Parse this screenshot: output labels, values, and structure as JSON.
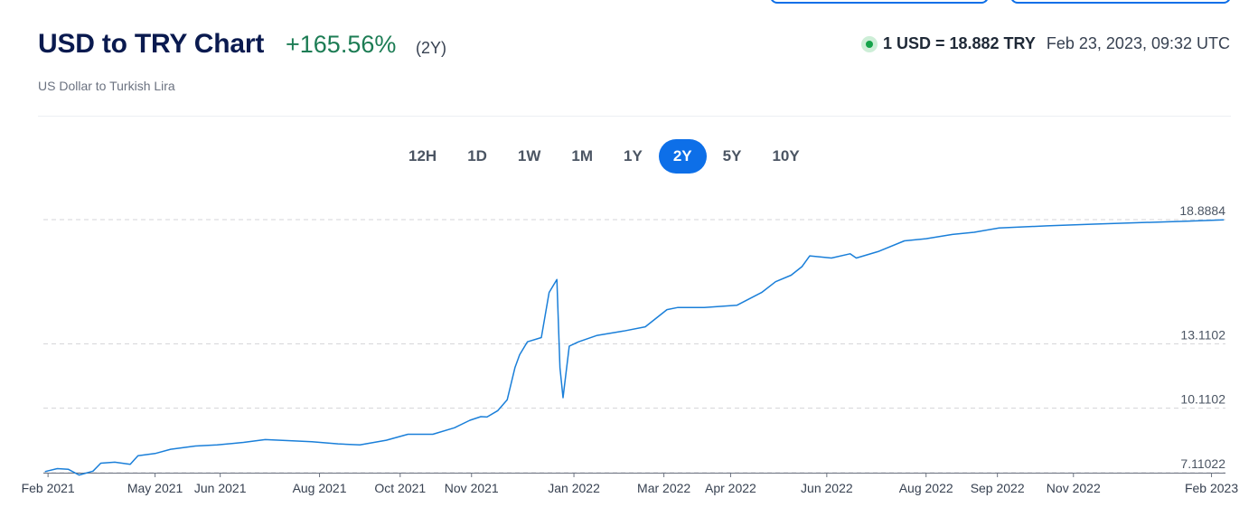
{
  "header": {
    "title": "USD to TRY Chart",
    "change": "+165.56%",
    "period": "(2Y)",
    "subtitle": "US Dollar to Turkish Lira",
    "rate": "1 USD = 18.882 TRY",
    "timestamp": "Feb 23, 2023, 09:32 UTC"
  },
  "periods": [
    {
      "label": "12H",
      "active": false
    },
    {
      "label": "1D",
      "active": false
    },
    {
      "label": "1W",
      "active": false
    },
    {
      "label": "1M",
      "active": false
    },
    {
      "label": "1Y",
      "active": false
    },
    {
      "label": "2Y",
      "active": true
    },
    {
      "label": "5Y",
      "active": false
    },
    {
      "label": "10Y",
      "active": false
    }
  ],
  "colors": {
    "line": "#1a7fd9",
    "accent": "#0d6fe8",
    "positive": "#1c7c54"
  },
  "chart_data": {
    "type": "line",
    "title": "USD to TRY Chart",
    "series": [
      {
        "x": [
          "2021-01-24",
          "2021-02-01",
          "2021-02-08",
          "2021-02-15",
          "2021-02-24",
          "2021-03-01",
          "2021-03-10",
          "2021-03-20",
          "2021-03-25",
          "2021-04-05",
          "2021-04-15",
          "2021-05-01",
          "2021-05-15",
          "2021-06-01",
          "2021-06-15",
          "2021-07-01",
          "2021-07-15",
          "2021-08-01",
          "2021-08-15",
          "2021-09-01",
          "2021-09-15",
          "2021-10-01",
          "2021-10-15",
          "2021-10-25",
          "2021-11-01",
          "2021-11-05",
          "2021-11-12",
          "2021-11-18",
          "2021-11-23",
          "2021-11-26",
          "2021-12-01",
          "2021-12-10",
          "2021-12-15",
          "2021-12-20",
          "2021-12-22",
          "2021-12-24",
          "2021-12-28",
          "2022-01-03",
          "2022-01-15",
          "2022-02-01",
          "2022-02-15",
          "2022-03-01",
          "2022-03-08",
          "2022-03-25",
          "2022-04-15",
          "2022-05-01",
          "2022-05-10",
          "2022-05-20",
          "2022-05-27",
          "2022-06-01",
          "2022-06-15",
          "2022-06-27",
          "2022-07-01",
          "2022-07-15",
          "2022-08-01",
          "2022-08-15",
          "2022-09-01",
          "2022-09-15",
          "2022-10-01",
          "2022-11-01",
          "2022-12-01",
          "2023-01-01",
          "2023-02-01",
          "2023-02-23"
        ],
        "values": [
          7.16,
          7.3,
          7.27,
          7.0,
          7.18,
          7.55,
          7.6,
          7.5,
          7.9,
          8.0,
          8.2,
          8.35,
          8.4,
          8.52,
          8.65,
          8.6,
          8.55,
          8.45,
          8.4,
          8.62,
          8.9,
          8.9,
          9.2,
          9.55,
          9.72,
          9.7,
          10.0,
          10.5,
          12.0,
          12.6,
          13.2,
          13.4,
          15.5,
          16.1,
          12.0,
          10.6,
          13.0,
          13.2,
          13.5,
          13.7,
          13.9,
          14.7,
          14.8,
          14.8,
          14.9,
          15.5,
          16.0,
          16.3,
          16.7,
          17.2,
          17.1,
          17.3,
          17.1,
          17.4,
          17.9,
          18.0,
          18.2,
          18.3,
          18.5,
          18.6,
          18.68,
          18.75,
          18.82,
          18.882
        ]
      }
    ],
    "y_ticks": [
      "18.8884",
      "13.1102",
      "10.1102",
      "7.11022"
    ],
    "y_tick_values": [
      18.8884,
      13.1102,
      10.1102,
      7.11022
    ],
    "x_ticks": [
      "Feb 2021",
      "May 2021",
      "Jun 2021",
      "Aug 2021",
      "Oct 2021",
      "Nov 2021",
      "Jan 2022",
      "Mar 2022",
      "Apr 2022",
      "Jun 2022",
      "Aug 2022",
      "Sep 2022",
      "Nov 2022",
      "Feb 2023"
    ],
    "x_tick_dates": [
      "2021-01-26",
      "2021-04-05",
      "2021-05-17",
      "2021-07-20",
      "2021-09-10",
      "2021-10-26",
      "2021-12-31",
      "2022-02-27",
      "2022-04-11",
      "2022-06-12",
      "2022-08-15",
      "2022-09-30",
      "2022-11-18",
      "2023-02-15"
    ],
    "xlim": [
      "2021-01-23",
      "2023-02-24"
    ],
    "ylim": [
      7.11022,
      18.8884
    ],
    "grid": "horizontal dashed at y ticks"
  }
}
